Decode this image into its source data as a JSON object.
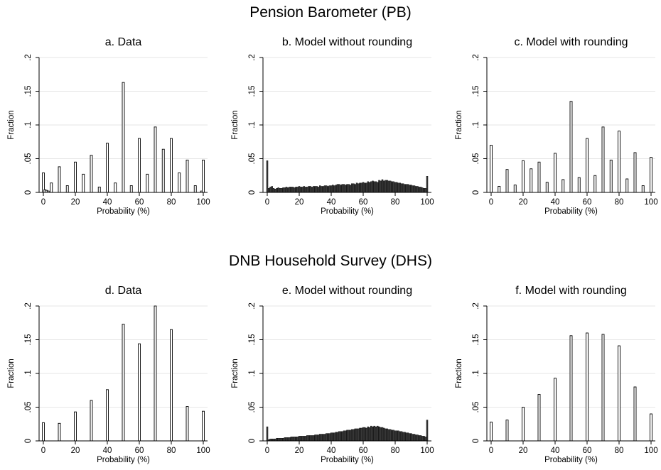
{
  "page": {
    "section_pb": "Pension Barometer (PB)",
    "section_dhs": "DNB Household Survey (DHS)"
  },
  "colors": {
    "bar_fill": "#3a3a3a",
    "bar_stroke": "#000000",
    "grid": "#e6e6e6",
    "axis": "#000000"
  },
  "chart_data": [
    {
      "type": "bar",
      "title": "a. Data",
      "xlabel": "Probability (%)",
      "ylabel": "Fraction",
      "xlim": [
        0,
        100
      ],
      "ylim": [
        0,
        0.2
      ],
      "xticks": [
        "0",
        "20",
        "40",
        "60",
        "80",
        "100"
      ],
      "yticks": [
        "0",
        ".05",
        ".1",
        ".15",
        ".2"
      ],
      "grid": true,
      "x": [
        0,
        1,
        2,
        3,
        5,
        10,
        15,
        20,
        25,
        30,
        35,
        40,
        45,
        50,
        55,
        60,
        65,
        70,
        75,
        80,
        85,
        90,
        95,
        99,
        100
      ],
      "values": [
        0.029,
        0.004,
        0.003,
        0.002,
        0.014,
        0.038,
        0.01,
        0.045,
        0.027,
        0.055,
        0.008,
        0.073,
        0.014,
        0.163,
        0.01,
        0.08,
        0.027,
        0.097,
        0.064,
        0.08,
        0.029,
        0.048,
        0.01,
        0.002,
        0.048
      ]
    },
    {
      "type": "bar",
      "title": "b. Model without rounding",
      "xlabel": "Probability (%)",
      "ylabel": "Fraction",
      "xlim": [
        0,
        100
      ],
      "ylim": [
        0,
        0.2
      ],
      "xticks": [
        "0",
        "20",
        "40",
        "60",
        "80",
        "100"
      ],
      "yticks": [
        "0",
        ".05",
        ".1",
        ".15",
        ".2"
      ],
      "grid": true,
      "x": [
        0,
        1,
        2,
        3,
        4,
        5,
        6,
        7,
        8,
        9,
        10,
        11,
        12,
        13,
        14,
        15,
        16,
        17,
        18,
        19,
        20,
        21,
        22,
        23,
        24,
        25,
        26,
        27,
        28,
        29,
        30,
        31,
        32,
        33,
        34,
        35,
        36,
        37,
        38,
        39,
        40,
        41,
        42,
        43,
        44,
        45,
        46,
        47,
        48,
        49,
        50,
        51,
        52,
        53,
        54,
        55,
        56,
        57,
        58,
        59,
        60,
        61,
        62,
        63,
        64,
        65,
        66,
        67,
        68,
        69,
        70,
        71,
        72,
        73,
        74,
        75,
        76,
        77,
        78,
        79,
        80,
        81,
        82,
        83,
        84,
        85,
        86,
        87,
        88,
        89,
        90,
        91,
        92,
        93,
        94,
        95,
        96,
        97,
        98,
        99,
        100
      ],
      "values": [
        0.047,
        0.006,
        0.008,
        0.009,
        0.006,
        0.005,
        0.006,
        0.007,
        0.006,
        0.006,
        0.007,
        0.007,
        0.008,
        0.007,
        0.008,
        0.008,
        0.008,
        0.007,
        0.008,
        0.008,
        0.009,
        0.008,
        0.008,
        0.009,
        0.008,
        0.008,
        0.009,
        0.009,
        0.008,
        0.009,
        0.009,
        0.009,
        0.008,
        0.01,
        0.009,
        0.009,
        0.01,
        0.01,
        0.009,
        0.01,
        0.01,
        0.011,
        0.01,
        0.011,
        0.012,
        0.012,
        0.011,
        0.012,
        0.012,
        0.011,
        0.012,
        0.012,
        0.011,
        0.013,
        0.013,
        0.012,
        0.014,
        0.013,
        0.014,
        0.014,
        0.015,
        0.014,
        0.014,
        0.016,
        0.015,
        0.016,
        0.017,
        0.016,
        0.016,
        0.015,
        0.018,
        0.017,
        0.019,
        0.017,
        0.018,
        0.018,
        0.017,
        0.017,
        0.016,
        0.016,
        0.015,
        0.015,
        0.014,
        0.014,
        0.013,
        0.013,
        0.012,
        0.012,
        0.012,
        0.011,
        0.011,
        0.01,
        0.01,
        0.009,
        0.009,
        0.008,
        0.008,
        0.007,
        0.006,
        0.006,
        0.024
      ]
    },
    {
      "type": "bar",
      "title": "c. Model with rounding",
      "xlabel": "Probability (%)",
      "ylabel": "Fraction",
      "xlim": [
        0,
        100
      ],
      "ylim": [
        0,
        0.2
      ],
      "xticks": [
        "0",
        "20",
        "40",
        "60",
        "80",
        "100"
      ],
      "yticks": [
        "0",
        ".05",
        ".1",
        ".15",
        ".2"
      ],
      "grid": true,
      "x": [
        0,
        5,
        10,
        15,
        20,
        25,
        30,
        35,
        40,
        45,
        50,
        55,
        60,
        65,
        70,
        75,
        80,
        85,
        90,
        95,
        100
      ],
      "values": [
        0.07,
        0.009,
        0.034,
        0.011,
        0.047,
        0.035,
        0.045,
        0.015,
        0.058,
        0.019,
        0.135,
        0.022,
        0.08,
        0.025,
        0.097,
        0.048,
        0.091,
        0.02,
        0.059,
        0.01,
        0.052
      ]
    },
    {
      "type": "bar",
      "title": "d. Data",
      "xlabel": "Probability (%)",
      "ylabel": "Fraction",
      "xlim": [
        0,
        100
      ],
      "ylim": [
        0,
        0.2
      ],
      "xticks": [
        "0",
        "20",
        "40",
        "60",
        "80",
        "100"
      ],
      "yticks": [
        "0",
        ".05",
        ".1",
        ".15",
        ".2"
      ],
      "grid": true,
      "x": [
        0,
        10,
        20,
        30,
        40,
        50,
        60,
        70,
        80,
        90,
        100
      ],
      "values": [
        0.027,
        0.026,
        0.043,
        0.06,
        0.076,
        0.173,
        0.144,
        0.2,
        0.165,
        0.051,
        0.044
      ]
    },
    {
      "type": "bar",
      "title": "e. Model without rounding",
      "xlabel": "Probability (%)",
      "ylabel": "Fraction",
      "xlim": [
        0,
        100
      ],
      "ylim": [
        0,
        0.2
      ],
      "xticks": [
        "0",
        "20",
        "40",
        "60",
        "80",
        "100"
      ],
      "yticks": [
        "0",
        ".05",
        ".1",
        ".15",
        ".2"
      ],
      "grid": true,
      "x": [
        0,
        1,
        2,
        3,
        4,
        5,
        6,
        7,
        8,
        9,
        10,
        11,
        12,
        13,
        14,
        15,
        16,
        17,
        18,
        19,
        20,
        21,
        22,
        23,
        24,
        25,
        26,
        27,
        28,
        29,
        30,
        31,
        32,
        33,
        34,
        35,
        36,
        37,
        38,
        39,
        40,
        41,
        42,
        43,
        44,
        45,
        46,
        47,
        48,
        49,
        50,
        51,
        52,
        53,
        54,
        55,
        56,
        57,
        58,
        59,
        60,
        61,
        62,
        63,
        64,
        65,
        66,
        67,
        68,
        69,
        70,
        71,
        72,
        73,
        74,
        75,
        76,
        77,
        78,
        79,
        80,
        81,
        82,
        83,
        84,
        85,
        86,
        87,
        88,
        89,
        90,
        91,
        92,
        93,
        94,
        95,
        96,
        97,
        98,
        99,
        100
      ],
      "values": [
        0.021,
        0.002,
        0.003,
        0.003,
        0.003,
        0.003,
        0.004,
        0.004,
        0.004,
        0.004,
        0.004,
        0.005,
        0.005,
        0.005,
        0.005,
        0.006,
        0.006,
        0.006,
        0.006,
        0.006,
        0.007,
        0.007,
        0.007,
        0.007,
        0.007,
        0.008,
        0.008,
        0.008,
        0.008,
        0.008,
        0.009,
        0.009,
        0.009,
        0.01,
        0.01,
        0.01,
        0.01,
        0.011,
        0.011,
        0.011,
        0.012,
        0.012,
        0.012,
        0.013,
        0.013,
        0.014,
        0.014,
        0.014,
        0.015,
        0.015,
        0.016,
        0.016,
        0.016,
        0.017,
        0.017,
        0.018,
        0.018,
        0.018,
        0.019,
        0.019,
        0.02,
        0.02,
        0.019,
        0.021,
        0.02,
        0.022,
        0.021,
        0.022,
        0.021,
        0.022,
        0.021,
        0.02,
        0.02,
        0.019,
        0.018,
        0.018,
        0.017,
        0.017,
        0.016,
        0.016,
        0.015,
        0.015,
        0.015,
        0.014,
        0.014,
        0.013,
        0.013,
        0.012,
        0.012,
        0.011,
        0.011,
        0.01,
        0.01,
        0.009,
        0.009,
        0.008,
        0.008,
        0.007,
        0.007,
        0.006,
        0.031
      ]
    },
    {
      "type": "bar",
      "title": "f. Model with rounding",
      "xlabel": "Probability (%)",
      "ylabel": "Fraction",
      "xlim": [
        0,
        100
      ],
      "ylim": [
        0,
        0.2
      ],
      "xticks": [
        "0",
        "20",
        "40",
        "60",
        "80",
        "100"
      ],
      "yticks": [
        "0",
        ".05",
        ".1",
        ".15",
        ".2"
      ],
      "grid": true,
      "x": [
        0,
        10,
        20,
        30,
        40,
        50,
        60,
        70,
        80,
        90,
        100
      ],
      "values": [
        0.028,
        0.031,
        0.05,
        0.069,
        0.093,
        0.156,
        0.16,
        0.158,
        0.141,
        0.08,
        0.04
      ]
    }
  ]
}
